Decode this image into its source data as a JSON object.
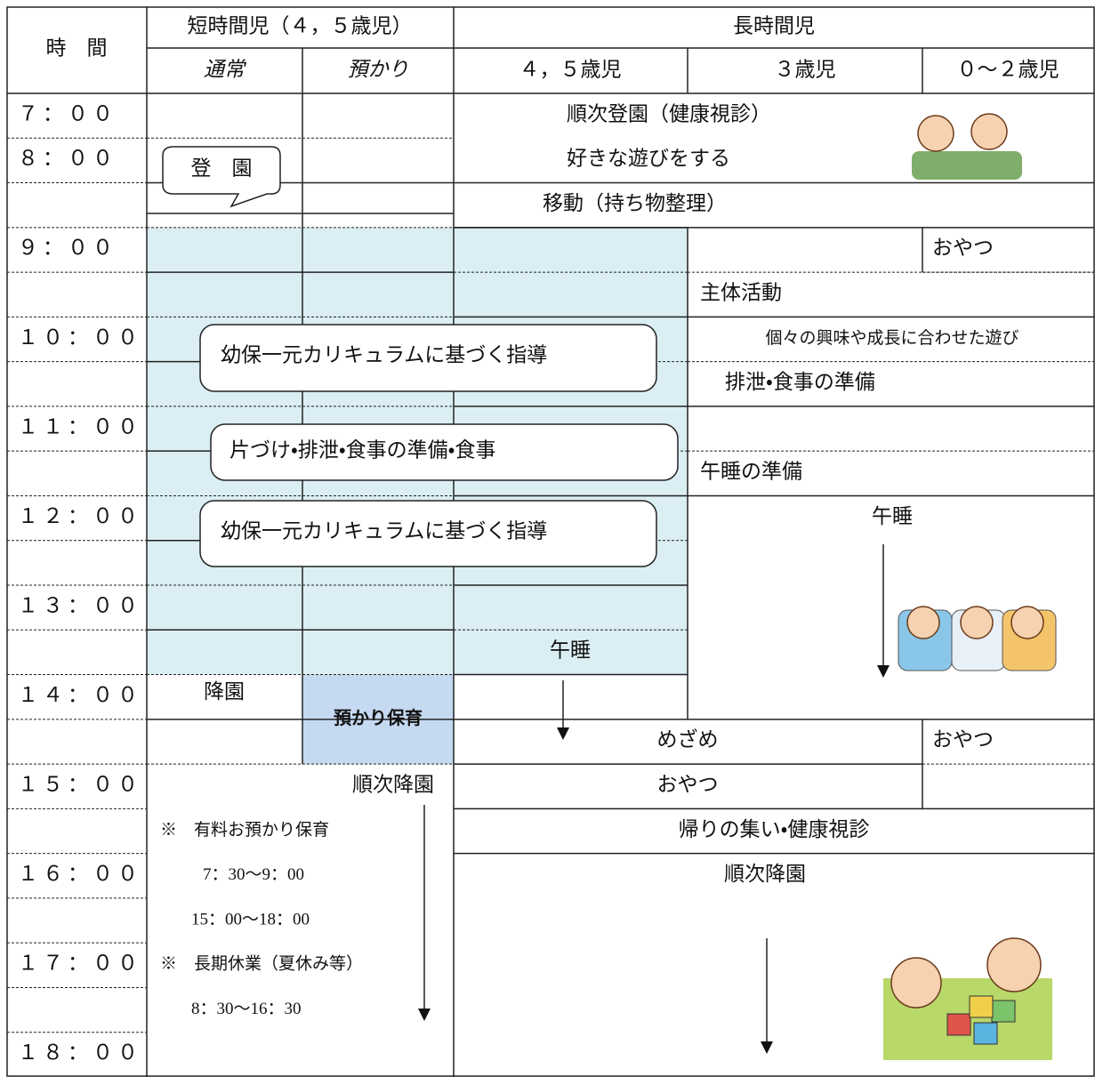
{
  "header": {
    "time": "時　間",
    "short_group": "短時間児（４，５歳児）",
    "long_group": "長時間児",
    "columns": [
      "通常",
      "預かり",
      "４，５歳児",
      "３歳児",
      "０～２歳児"
    ]
  },
  "times": [
    "７：００",
    "８：００",
    "９：００",
    "１０：００",
    "１１：００",
    "１２：００",
    "１３：００",
    "１４：００",
    "１５：００",
    "１６：００",
    "１７：００",
    "１８：００"
  ],
  "short": {
    "arrival": "登　園",
    "leave": "降園",
    "care": "預かり保育",
    "sequential_leave": "順次降園",
    "notes": [
      "※　有料お預かり保育",
      "7：30～9：00",
      "15：00～18：00",
      "※　長期休業（夏休み等）",
      "8：30～16：30"
    ]
  },
  "shared": [
    "幼保一元カリキュラムに基づく指導",
    "片づけ・排泄・食事の準備・食事",
    "幼保一元カリキュラムに基づく指導"
  ],
  "long": {
    "morning": [
      "順次登園（健康視診）",
      "好きな遊びをする",
      "移動（持ち物整理）"
    ],
    "snack_infant": "おやつ",
    "main_activity": "主体活動",
    "play": "個々の興味や成長に合わせた遊び",
    "prep_meal": "排泄・食事の準備",
    "prep_nap": "午睡の準備",
    "nap": "午睡",
    "nap_45": "午睡",
    "wake": "めざめ",
    "snack_infant_pm": "おやつ",
    "snack": "おやつ",
    "gathering": "帰りの集い・健康視診",
    "sequential_leave": "順次降園"
  }
}
